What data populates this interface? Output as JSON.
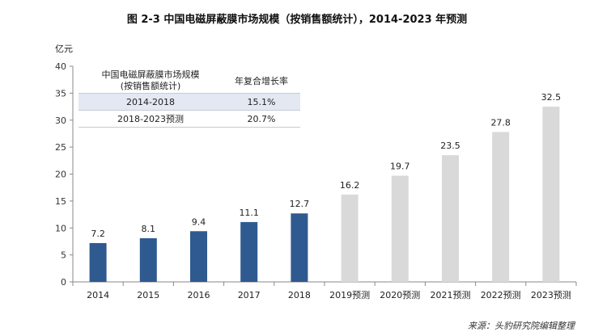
{
  "chart_title": "图 2-3 中国电磁屏蔽膜市场规模（按销售额统计），2014-2023 年预测",
  "source": "来源：头豹研究院编辑整理",
  "table": {
    "header_col1_line1": "中国电磁屏蔽膜市场规模",
    "header_col1_line2": "(按销售额统计)",
    "header_col2": "年复合增长率",
    "rows": [
      {
        "period": "2014-2018",
        "cagr": "15.1%"
      },
      {
        "period": "2018-2023预测",
        "cagr": "20.7%"
      }
    ]
  },
  "colors": {
    "actual_bar": "#2f5a90",
    "forecast_bar": "#d9d9d9",
    "axis": "#888888",
    "table_shade": "#e3e8f3"
  },
  "chart_data": {
    "type": "bar",
    "title": "图 2-3 中国电磁屏蔽膜市场规模（按销售额统计），2014-2023 年预测",
    "ylabel": "亿元",
    "xlabel": "",
    "ylim": [
      0,
      40
    ],
    "yticks": [
      0,
      5,
      10,
      15,
      20,
      25,
      30,
      35,
      40
    ],
    "grid": false,
    "categories": [
      "2014",
      "2015",
      "2016",
      "2017",
      "2018",
      "2019预测",
      "2020预测",
      "2021预测",
      "2022预测",
      "2023预测"
    ],
    "values": [
      7.2,
      8.1,
      9.4,
      11.1,
      12.7,
      16.2,
      19.7,
      23.5,
      27.8,
      32.5
    ],
    "value_labels": [
      "7.2",
      "8.1",
      "9.4",
      "11.1",
      "12.7",
      "16.2",
      "19.7",
      "23.5",
      "27.8",
      "32.5"
    ],
    "actual_count": 5
  }
}
